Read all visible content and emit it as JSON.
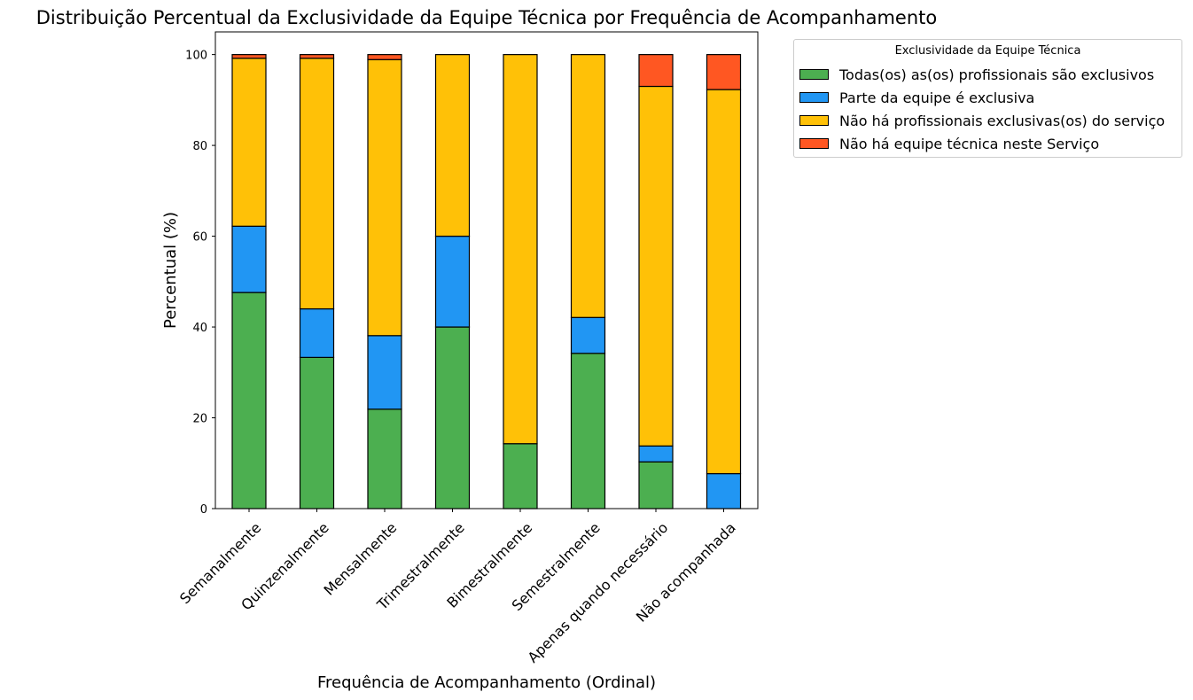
{
  "chart_data": {
    "type": "bar",
    "stacked": true,
    "title": "Distribuição Percentual da Exclusividade da Equipe Técnica por Frequência de Acompanhamento",
    "xlabel": "Frequência de Acompanhamento (Ordinal)",
    "ylabel": "Percentual (%)",
    "ylim": [
      0,
      105
    ],
    "yticks": [
      0,
      20,
      40,
      60,
      80,
      100
    ],
    "legend_title": "Exclusividade da Equipe Técnica",
    "legend_position": "outside-top-right",
    "categories": [
      "Semanalmente",
      "Quinzenalmente",
      "Mensalmente",
      "Trimestralmente",
      "Bimestralmente",
      "Semestralmente",
      "Apenas quando necessário",
      "Não acompanhada"
    ],
    "series": [
      {
        "name": "Todas(os) as(os) profissionais são exclusivos",
        "color": "#4caf50",
        "values": [
          47.6,
          33.3,
          21.9,
          40.0,
          14.3,
          34.2,
          10.3,
          0.0
        ]
      },
      {
        "name": "Parte da equipe é exclusiva",
        "color": "#2196f3",
        "values": [
          14.6,
          10.7,
          16.2,
          20.0,
          0.0,
          7.9,
          3.5,
          7.7
        ]
      },
      {
        "name": "Não há profissionais exclusivas(os) do serviço",
        "color": "#ffc107",
        "values": [
          37.0,
          55.2,
          60.8,
          40.0,
          85.7,
          57.9,
          79.2,
          84.6
        ]
      },
      {
        "name": "Não há equipe técnica neste Serviço",
        "color": "#ff5722",
        "values": [
          0.8,
          0.8,
          1.1,
          0.0,
          0.0,
          0.0,
          7.0,
          7.7
        ]
      }
    ]
  }
}
